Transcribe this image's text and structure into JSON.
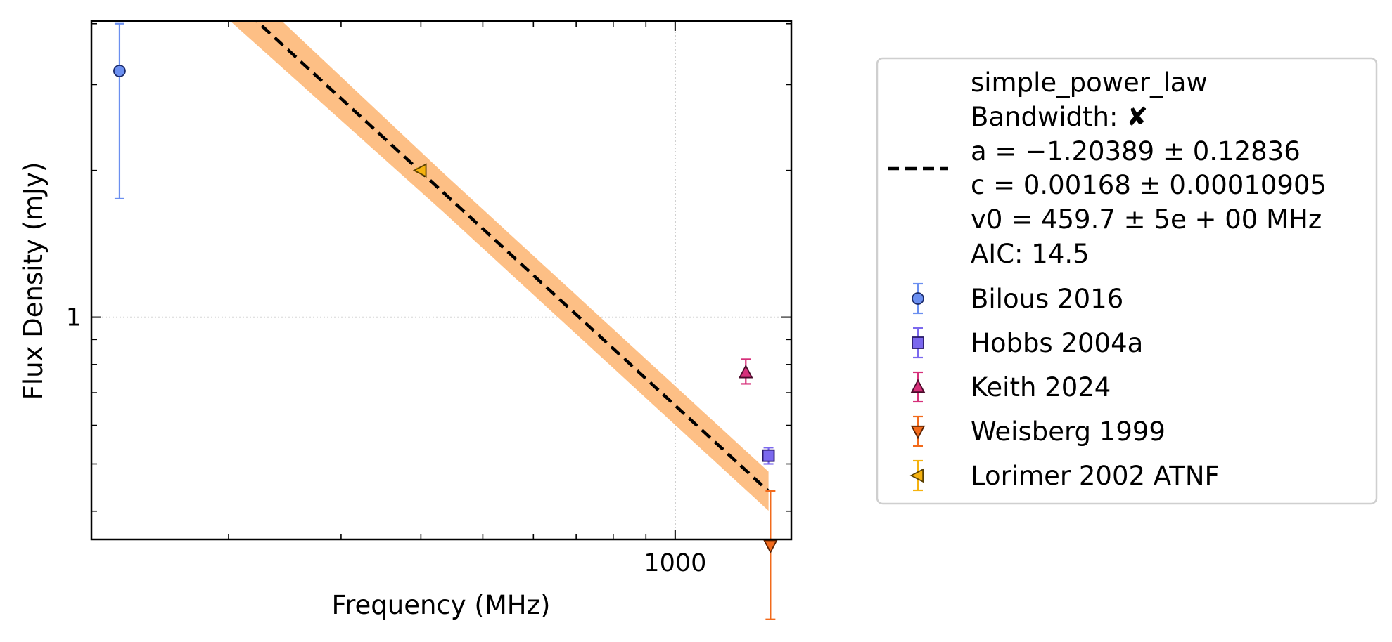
{
  "chart_data": {
    "type": "scatter",
    "xlabel": "Frequency (MHz)",
    "ylabel": "Flux Density (mJy)",
    "x_scale": "log",
    "y_scale": "log",
    "xlim": [
      122,
      1520
    ],
    "ylim": [
      0.35,
      4.05
    ],
    "x_tick_labels": [
      {
        "value": 1000,
        "label": "1000"
      }
    ],
    "y_tick_labels": [
      {
        "value": 1,
        "label": "1"
      }
    ],
    "grid": "dotted, major ticks only",
    "legend_position": "right, outside plot",
    "fit": {
      "name": "simple_power_law",
      "legend_lines": [
        "simple_power_law",
        "Bandwidth: ✘",
        "a = −1.20389 ± 0.12836",
        "c = 0.00168 ± 0.00010905",
        "v0 = 459.7 ± 5e + 00 MHz",
        "AIC: 14.5"
      ],
      "a": -1.20389,
      "a_err": 0.12836,
      "c": 0.00168,
      "c_err": 0.00010905,
      "v0": 459.7,
      "line_color": "#000000",
      "band_color": "#fdbf85",
      "x_range": [
        135,
        1400
      ],
      "band_halfwidth_dex": [
        0.055,
        0.04,
        0.04
      ]
    },
    "series": [
      {
        "name": "Bilous 2016",
        "marker": "circle",
        "color": "#6b8ff0",
        "edge": "#1a2a6a",
        "points": [
          {
            "x": 135,
            "y": 3.2,
            "yerr_low": 1.45,
            "yerr_high": 0.8
          }
        ]
      },
      {
        "name": "Hobbs 2004a",
        "marker": "square",
        "color": "#7b68ee",
        "edge": "#2a1a6a",
        "points": [
          {
            "x": 1400,
            "y": 0.52,
            "yerr_low": 0.02,
            "yerr_high": 0.02
          }
        ]
      },
      {
        "name": "Keith 2024",
        "marker": "triangle-up",
        "color": "#d6307a",
        "edge": "#4a0a2a",
        "points": [
          {
            "x": 1290,
            "y": 0.77,
            "yerr_low": 0.04,
            "yerr_high": 0.05
          }
        ]
      },
      {
        "name": "Weisberg 1999",
        "marker": "triangle-down",
        "color": "#f26a1b",
        "edge": "#5a2000",
        "points": [
          {
            "x": 1410,
            "y": 0.34,
            "yerr_low": 0.1,
            "yerr_high": 0.1
          }
        ]
      },
      {
        "name": "Lorimer 2002 ATNF",
        "marker": "triangle-left",
        "color": "#f5b20f",
        "edge": "#5a4000",
        "points": [
          {
            "x": 400,
            "y": 2.0,
            "yerr_low": 0.02,
            "yerr_high": 0.02
          }
        ]
      }
    ]
  }
}
